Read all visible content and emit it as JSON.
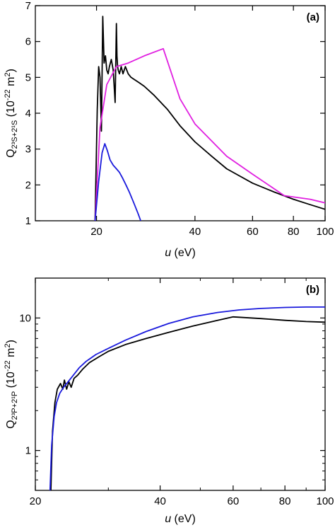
{
  "chart_data": [
    {
      "panel": "(a)",
      "type": "line",
      "xlabel_var": "u",
      "xlabel_unit": " (eV)",
      "ylabel_prefix": "Q",
      "ylabel_sub": "2³S+2¹S",
      "ylabel_unit_open": " (10",
      "ylabel_unit_exp": "-22",
      "ylabel_unit_mid": " m",
      "ylabel_unit_exp2": "2",
      "ylabel_unit_close": ")",
      "xscale": "log",
      "yscale": "linear",
      "xlim": [
        13,
        100
      ],
      "ylim": [
        1,
        7
      ],
      "xticks": [
        20,
        40,
        60,
        80,
        100
      ],
      "xticklabels": [
        "20",
        "40",
        "60",
        "80",
        "100"
      ],
      "xminor": [],
      "yticks": [
        1,
        2,
        3,
        4,
        5,
        6,
        7
      ],
      "yticklabels": [
        "1",
        "2",
        "3",
        "4",
        "5",
        "6",
        "7"
      ],
      "series": [
        {
          "color": "#000000",
          "x": [
            19.8,
            20.1,
            20.3,
            20.5,
            20.7,
            20.9,
            21.1,
            21.3,
            21.5,
            21.7,
            21.9,
            22.2,
            22.5,
            22.8,
            23.0,
            23.1,
            23.2,
            23.3,
            23.5,
            23.8,
            24.1,
            24.5,
            25.0,
            25.5,
            26.0,
            27.0,
            28.0,
            30.0,
            33.0,
            36.0,
            40.0,
            45.0,
            50.0,
            60.0,
            70.0,
            80.0,
            90.0,
            100.0
          ],
          "y": [
            1.0,
            4.1,
            5.3,
            5.0,
            3.5,
            6.7,
            5.4,
            5.6,
            5.2,
            5.1,
            5.3,
            5.5,
            5.2,
            4.3,
            6.5,
            5.6,
            5.3,
            5.2,
            5.1,
            5.3,
            5.1,
            5.3,
            5.1,
            5.0,
            4.95,
            4.85,
            4.75,
            4.5,
            4.1,
            3.65,
            3.2,
            2.8,
            2.45,
            2.05,
            1.8,
            1.6,
            1.45,
            1.32
          ]
        },
        {
          "color": "#e020e0",
          "x": [
            19.8,
            20.5,
            21.5,
            23.0,
            25.0,
            28.0,
            32.0,
            36.0,
            40.0,
            50.0,
            60.0,
            75.0,
            90.0,
            100.0
          ],
          "y": [
            1.0,
            3.6,
            4.8,
            5.3,
            5.4,
            5.6,
            5.8,
            4.4,
            3.7,
            2.8,
            2.3,
            1.7,
            1.6,
            1.5
          ]
        },
        {
          "color": "#1a1adc",
          "x": [
            19.8,
            20.3,
            20.8,
            21.2,
            21.6,
            22.0,
            22.5,
            23.0,
            23.5,
            24.0,
            24.6,
            25.2,
            26.0,
            26.8,
            27.3
          ],
          "y": [
            1.0,
            2.1,
            2.9,
            3.15,
            2.95,
            2.7,
            2.55,
            2.45,
            2.35,
            2.2,
            2.0,
            1.8,
            1.5,
            1.2,
            1.0
          ]
        }
      ]
    },
    {
      "panel": "(b)",
      "type": "line",
      "xlabel_var": "u",
      "xlabel_unit": " (eV)",
      "ylabel_prefix": "Q",
      "ylabel_sub": "2³P+2¹P",
      "ylabel_unit_open": " (10",
      "ylabel_unit_exp": "-22",
      "ylabel_unit_mid": " m",
      "ylabel_unit_exp2": "2",
      "ylabel_unit_close": ")",
      "xscale": "log",
      "yscale": "log",
      "xlim": [
        20,
        100
      ],
      "ylim": [
        0.5,
        20
      ],
      "xticks": [
        20,
        40,
        60,
        80,
        100
      ],
      "xticklabels": [
        "20",
        "40",
        "60",
        "80",
        "100"
      ],
      "xminor": [
        30,
        50,
        70,
        90
      ],
      "yticks": [
        1,
        10
      ],
      "yticklabels": [
        "1",
        "10"
      ],
      "yminor": [
        0.6,
        0.7,
        0.8,
        0.9,
        2,
        3,
        4,
        5,
        6,
        7,
        8,
        9,
        20
      ],
      "series": [
        {
          "color": "#000000",
          "x": [
            21.8,
            22.0,
            22.3,
            22.6,
            23.0,
            23.3,
            23.5,
            23.8,
            24.1,
            24.4,
            24.8,
            25.3,
            26.0,
            27.0,
            28.5,
            30.0,
            33.0,
            37.0,
            42.0,
            48.0,
            55.0,
            60.0,
            70.0,
            80.0,
            90.0,
            100.0
          ],
          "y": [
            0.5,
            1.4,
            2.3,
            2.9,
            3.2,
            2.9,
            3.4,
            2.9,
            3.3,
            3.0,
            3.5,
            3.7,
            4.1,
            4.6,
            5.1,
            5.6,
            6.3,
            7.0,
            7.8,
            8.7,
            9.6,
            10.2,
            9.9,
            9.6,
            9.4,
            9.3
          ]
        },
        {
          "color": "#1a1adc",
          "x": [
            21.7,
            21.9,
            22.2,
            22.5,
            22.9,
            23.4,
            24.0,
            24.7,
            25.5,
            26.5,
            28.0,
            30.0,
            33.0,
            37.0,
            42.0,
            48.0,
            55.0,
            62.0,
            70.0,
            80.0,
            90.0,
            100.0
          ],
          "y": [
            0.5,
            1.1,
            1.8,
            2.3,
            2.7,
            3.0,
            3.3,
            3.7,
            4.2,
            4.7,
            5.3,
            5.9,
            6.8,
            7.9,
            9.1,
            10.2,
            11.0,
            11.5,
            11.8,
            12.0,
            12.1,
            12.1
          ]
        }
      ]
    }
  ]
}
